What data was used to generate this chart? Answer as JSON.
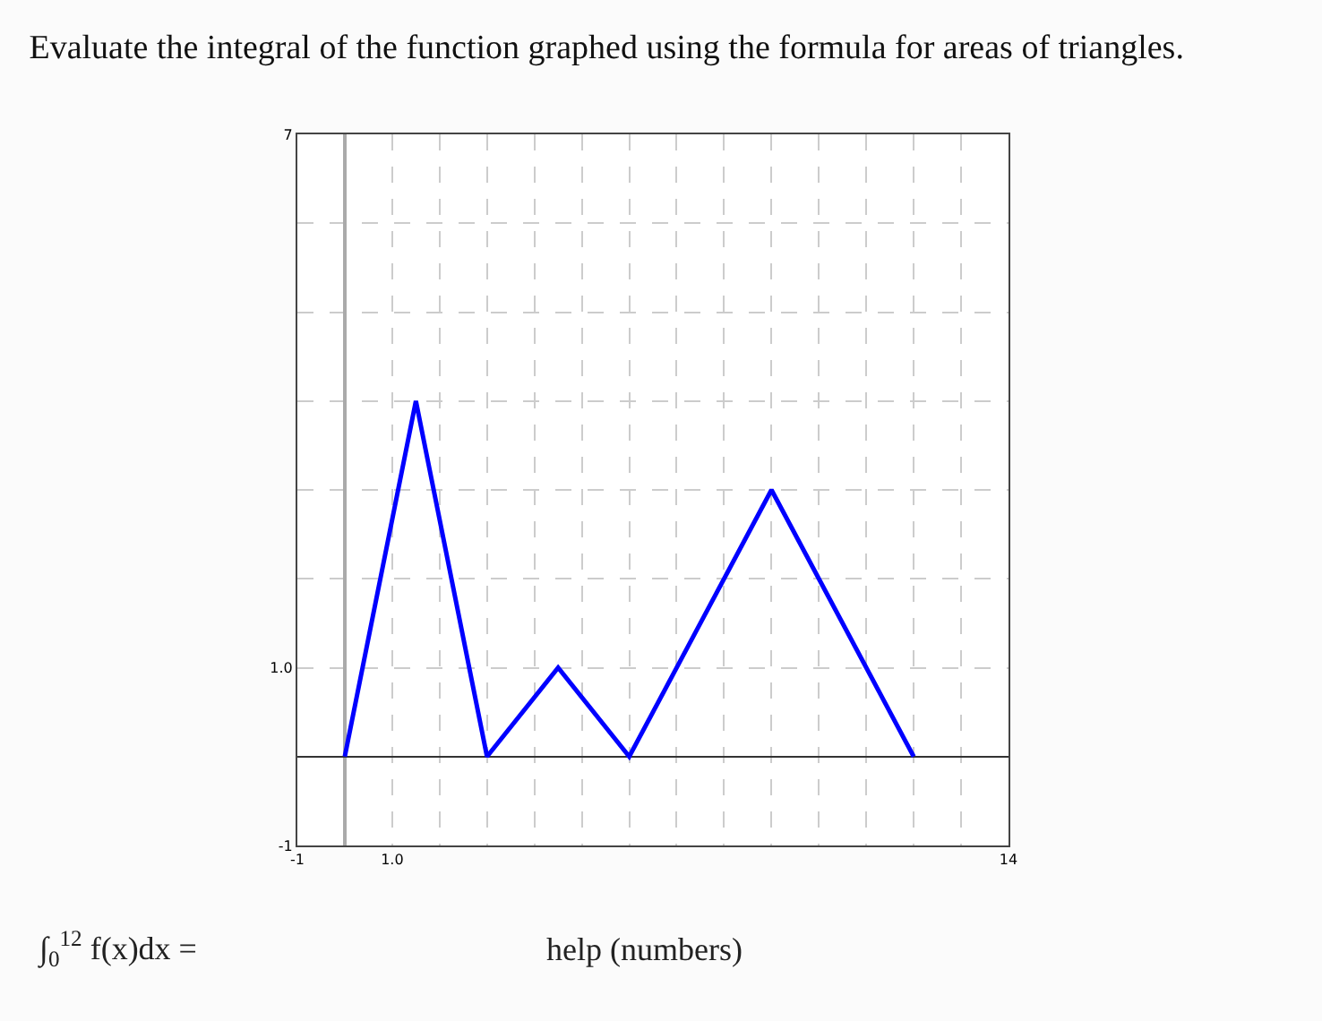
{
  "chart_data": {
    "type": "line",
    "title": "Evaluate the integral of the function graphed using the formula for areas of triangles.",
    "x": [
      0,
      1.5,
      3,
      4.5,
      6,
      9,
      12
    ],
    "series": [
      {
        "color": "#0000ff",
        "values": [
          0,
          4,
          0,
          1,
          0,
          3,
          0
        ]
      }
    ],
    "xlim": [
      -1,
      14
    ],
    "ylim": [
      -1,
      7
    ],
    "xticks": [
      -1,
      {
        "value": 0,
        "label": null
      },
      {
        "value": 1,
        "label": "1.0"
      },
      {
        "value": 2,
        "label": null
      },
      {
        "value": 3,
        "label": null
      },
      {
        "value": 4,
        "label": null
      },
      {
        "value": 5,
        "label": null
      },
      {
        "value": 6,
        "label": null
      },
      {
        "value": 7,
        "label": null
      },
      {
        "value": 8,
        "label": null
      },
      {
        "value": 9,
        "label": null
      },
      {
        "value": 10,
        "label": null
      },
      {
        "value": 11,
        "label": null
      },
      {
        "value": 12,
        "label": null
      },
      {
        "value": 13,
        "label": null
      },
      14
    ],
    "yticks": [
      -1,
      {
        "value": 0,
        "label": null
      },
      {
        "value": 1,
        "label": "1.0"
      },
      {
        "value": 2,
        "label": null
      },
      {
        "value": 3,
        "label": null
      },
      {
        "value": 4,
        "label": null
      },
      {
        "value": 5,
        "label": null
      },
      {
        "value": 6,
        "label": null
      },
      7
    ],
    "grid": true,
    "marker": "none",
    "line_style": "solid",
    "annotations": [
      "∫$_{0}$$^{12}$ f(x)dx =",
      "help (numbers)"
    ]
  }
}
